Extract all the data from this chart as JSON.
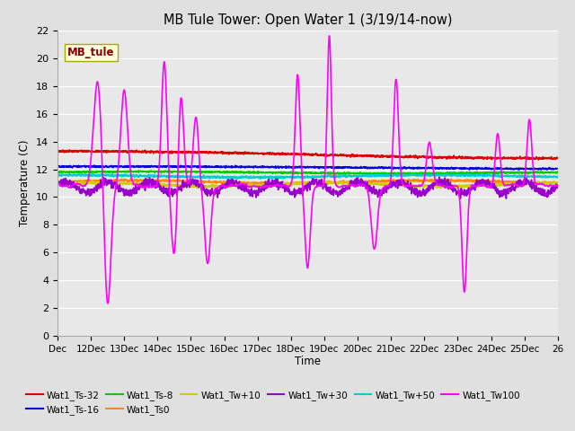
{
  "title": "MB Tule Tower: Open Water 1 (3/19/14-now)",
  "xlabel": "Time",
  "ylabel": "Temperature (C)",
  "ylim": [
    0,
    22
  ],
  "yticks": [
    0,
    2,
    4,
    6,
    8,
    10,
    12,
    14,
    16,
    18,
    20,
    22
  ],
  "xtick_labels": [
    "Dec",
    "12Dec",
    "13Dec",
    "14Dec",
    "15Dec",
    "16Dec",
    "17Dec",
    "18Dec",
    "19Dec",
    "20Dec",
    "21Dec",
    "22Dec",
    "23Dec",
    "24Dec",
    "25Dec",
    "26"
  ],
  "bg_color": "#e0e0e0",
  "plot_bg_color": "#e8e8e8",
  "legend_label_box": "MB_tule",
  "legend_box_facecolor": "#ffffe0",
  "legend_box_edgecolor": "#aaaa00",
  "series": [
    {
      "name": "Wat1_Ts-32",
      "color": "#dd0000",
      "lw": 1.2
    },
    {
      "name": "Wat1_Ts-16",
      "color": "#0000dd",
      "lw": 1.2
    },
    {
      "name": "Wat1_Ts-8",
      "color": "#00cc00",
      "lw": 1.2
    },
    {
      "name": "Wat1_Ts0",
      "color": "#ff8800",
      "lw": 1.2
    },
    {
      "name": "Wat1_Tw+10",
      "color": "#cccc00",
      "lw": 1.2
    },
    {
      "name": "Wat1_Tw+30",
      "color": "#9900cc",
      "lw": 1.2
    },
    {
      "name": "Wat1_Tw+50",
      "color": "#00cccc",
      "lw": 1.2
    },
    {
      "name": "Wat1_Tw100",
      "color": "#ff00ff",
      "lw": 1.2
    }
  ]
}
